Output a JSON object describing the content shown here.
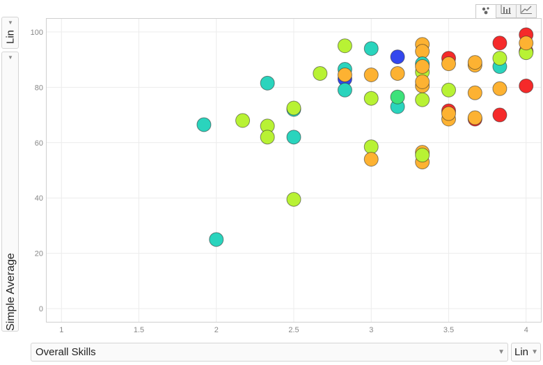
{
  "toolbar": {
    "tabs": [
      {
        "icon": "bubble-chart-icon",
        "active": true
      },
      {
        "icon": "bar-chart-icon",
        "active": false
      },
      {
        "icon": "line-chart-icon",
        "active": false
      }
    ]
  },
  "controls": {
    "y_scale": "Lin",
    "x_scale": "Lin",
    "y_variable": "Simple Average",
    "x_variable": "Overall Skills"
  },
  "colors": {
    "red": "#f52a2a",
    "orange": "#fdb232",
    "lime": "#b8f234",
    "teal": "#2ad4bd",
    "green": "#3de27a",
    "blue": "#3347ee"
  },
  "chart_data": {
    "type": "scatter",
    "xlabel": "Overall Skills",
    "ylabel": "Simple Average",
    "xlim": [
      0.9,
      4.1
    ],
    "ylim": [
      -5,
      105
    ],
    "x_ticks": [
      "1",
      "1.5",
      "2",
      "2.5",
      "3",
      "3.5",
      "4"
    ],
    "y_ticks": [
      "0",
      "20",
      "40",
      "60",
      "80",
      "100"
    ],
    "x_tick_values": [
      1,
      1.5,
      2,
      2.5,
      3,
      3.5,
      4
    ],
    "y_tick_values": [
      0,
      20,
      40,
      60,
      80,
      100
    ],
    "grid": true,
    "points": [
      {
        "x": 1.92,
        "y": 66.5,
        "color": "teal"
      },
      {
        "x": 2.0,
        "y": 25.0,
        "color": "teal"
      },
      {
        "x": 2.17,
        "y": 68.0,
        "color": "lime"
      },
      {
        "x": 2.33,
        "y": 81.5,
        "color": "teal"
      },
      {
        "x": 2.33,
        "y": 66.0,
        "color": "lime"
      },
      {
        "x": 2.33,
        "y": 62.0,
        "color": "lime"
      },
      {
        "x": 2.5,
        "y": 72.0,
        "color": "teal"
      },
      {
        "x": 2.5,
        "y": 72.5,
        "color": "lime"
      },
      {
        "x": 2.5,
        "y": 62.0,
        "color": "teal"
      },
      {
        "x": 2.5,
        "y": 39.5,
        "color": "lime"
      },
      {
        "x": 2.67,
        "y": 85.0,
        "color": "lime"
      },
      {
        "x": 2.83,
        "y": 95.0,
        "color": "lime"
      },
      {
        "x": 2.83,
        "y": 86.5,
        "color": "teal"
      },
      {
        "x": 2.83,
        "y": 83.0,
        "color": "blue"
      },
      {
        "x": 2.83,
        "y": 84.5,
        "color": "orange"
      },
      {
        "x": 2.83,
        "y": 79.0,
        "color": "teal"
      },
      {
        "x": 3.0,
        "y": 94.0,
        "color": "teal"
      },
      {
        "x": 3.0,
        "y": 84.5,
        "color": "orange"
      },
      {
        "x": 3.0,
        "y": 76.0,
        "color": "lime"
      },
      {
        "x": 3.0,
        "y": 58.5,
        "color": "lime"
      },
      {
        "x": 3.0,
        "y": 54.0,
        "color": "orange"
      },
      {
        "x": 3.17,
        "y": 91.0,
        "color": "blue"
      },
      {
        "x": 3.17,
        "y": 85.0,
        "color": "orange"
      },
      {
        "x": 3.17,
        "y": 73.0,
        "color": "teal"
      },
      {
        "x": 3.17,
        "y": 76.5,
        "color": "green"
      },
      {
        "x": 3.33,
        "y": 95.5,
        "color": "orange"
      },
      {
        "x": 3.33,
        "y": 93.0,
        "color": "orange"
      },
      {
        "x": 3.33,
        "y": 88.5,
        "color": "teal"
      },
      {
        "x": 3.33,
        "y": 85.5,
        "color": "lime"
      },
      {
        "x": 3.33,
        "y": 87.5,
        "color": "orange"
      },
      {
        "x": 3.33,
        "y": 80.5,
        "color": "orange"
      },
      {
        "x": 3.33,
        "y": 82.0,
        "color": "orange"
      },
      {
        "x": 3.33,
        "y": 75.5,
        "color": "lime"
      },
      {
        "x": 3.33,
        "y": 56.5,
        "color": "orange"
      },
      {
        "x": 3.33,
        "y": 53.0,
        "color": "orange"
      },
      {
        "x": 3.33,
        "y": 55.5,
        "color": "lime"
      },
      {
        "x": 3.5,
        "y": 90.5,
        "color": "red"
      },
      {
        "x": 3.5,
        "y": 88.5,
        "color": "orange"
      },
      {
        "x": 3.5,
        "y": 79.0,
        "color": "lime"
      },
      {
        "x": 3.5,
        "y": 71.5,
        "color": "red"
      },
      {
        "x": 3.5,
        "y": 68.5,
        "color": "orange"
      },
      {
        "x": 3.5,
        "y": 70.5,
        "color": "orange"
      },
      {
        "x": 3.67,
        "y": 88.0,
        "color": "orange"
      },
      {
        "x": 3.67,
        "y": 89.0,
        "color": "orange"
      },
      {
        "x": 3.67,
        "y": 78.0,
        "color": "orange"
      },
      {
        "x": 3.67,
        "y": 68.5,
        "color": "red"
      },
      {
        "x": 3.67,
        "y": 69.0,
        "color": "orange"
      },
      {
        "x": 3.83,
        "y": 96.0,
        "color": "red"
      },
      {
        "x": 3.83,
        "y": 87.5,
        "color": "teal"
      },
      {
        "x": 3.83,
        "y": 90.5,
        "color": "lime"
      },
      {
        "x": 3.83,
        "y": 79.5,
        "color": "orange"
      },
      {
        "x": 3.83,
        "y": 70.0,
        "color": "red"
      },
      {
        "x": 4.0,
        "y": 99.0,
        "color": "red"
      },
      {
        "x": 4.0,
        "y": 93.0,
        "color": "red"
      },
      {
        "x": 4.0,
        "y": 92.5,
        "color": "lime"
      },
      {
        "x": 4.0,
        "y": 96.0,
        "color": "orange"
      },
      {
        "x": 4.0,
        "y": 80.5,
        "color": "red"
      }
    ]
  }
}
